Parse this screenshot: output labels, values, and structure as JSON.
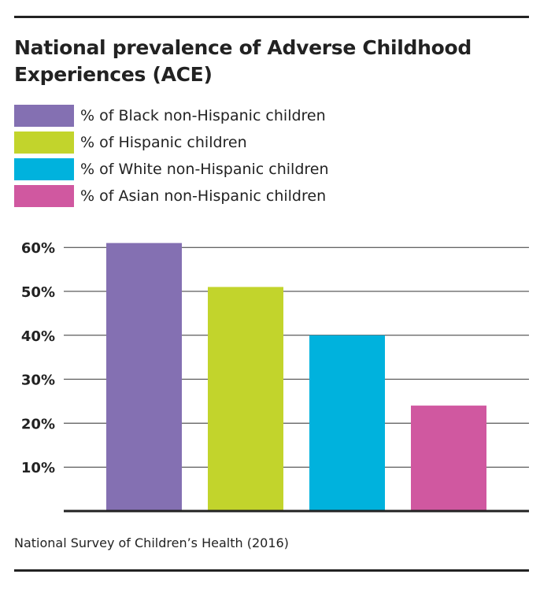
{
  "title": "National prevalence of Adverse Childhood Experiences (ACE)",
  "source": "National Survey of Children’s Health (2016)",
  "chart_data": {
    "type": "bar",
    "categories": [
      "% of Black non-Hispanic children",
      "% of Hispanic children",
      "% of White non-Hispanic children",
      "% of Asian non-Hispanic children"
    ],
    "values": [
      61,
      51,
      40,
      24
    ],
    "colors": [
      "#8470b2",
      "#c2d42c",
      "#00b2dd",
      "#d058a0"
    ],
    "ylim": [
      0,
      60
    ],
    "yticks": [
      {
        "value": 10,
        "label": "10%"
      },
      {
        "value": 20,
        "label": "20%"
      },
      {
        "value": 30,
        "label": "30%"
      },
      {
        "value": 40,
        "label": "40%"
      },
      {
        "value": 50,
        "label": "50%"
      },
      {
        "value": 60,
        "label": "60%"
      }
    ],
    "grid": true,
    "legend_position": "top",
    "xlabel": "",
    "ylabel": ""
  }
}
